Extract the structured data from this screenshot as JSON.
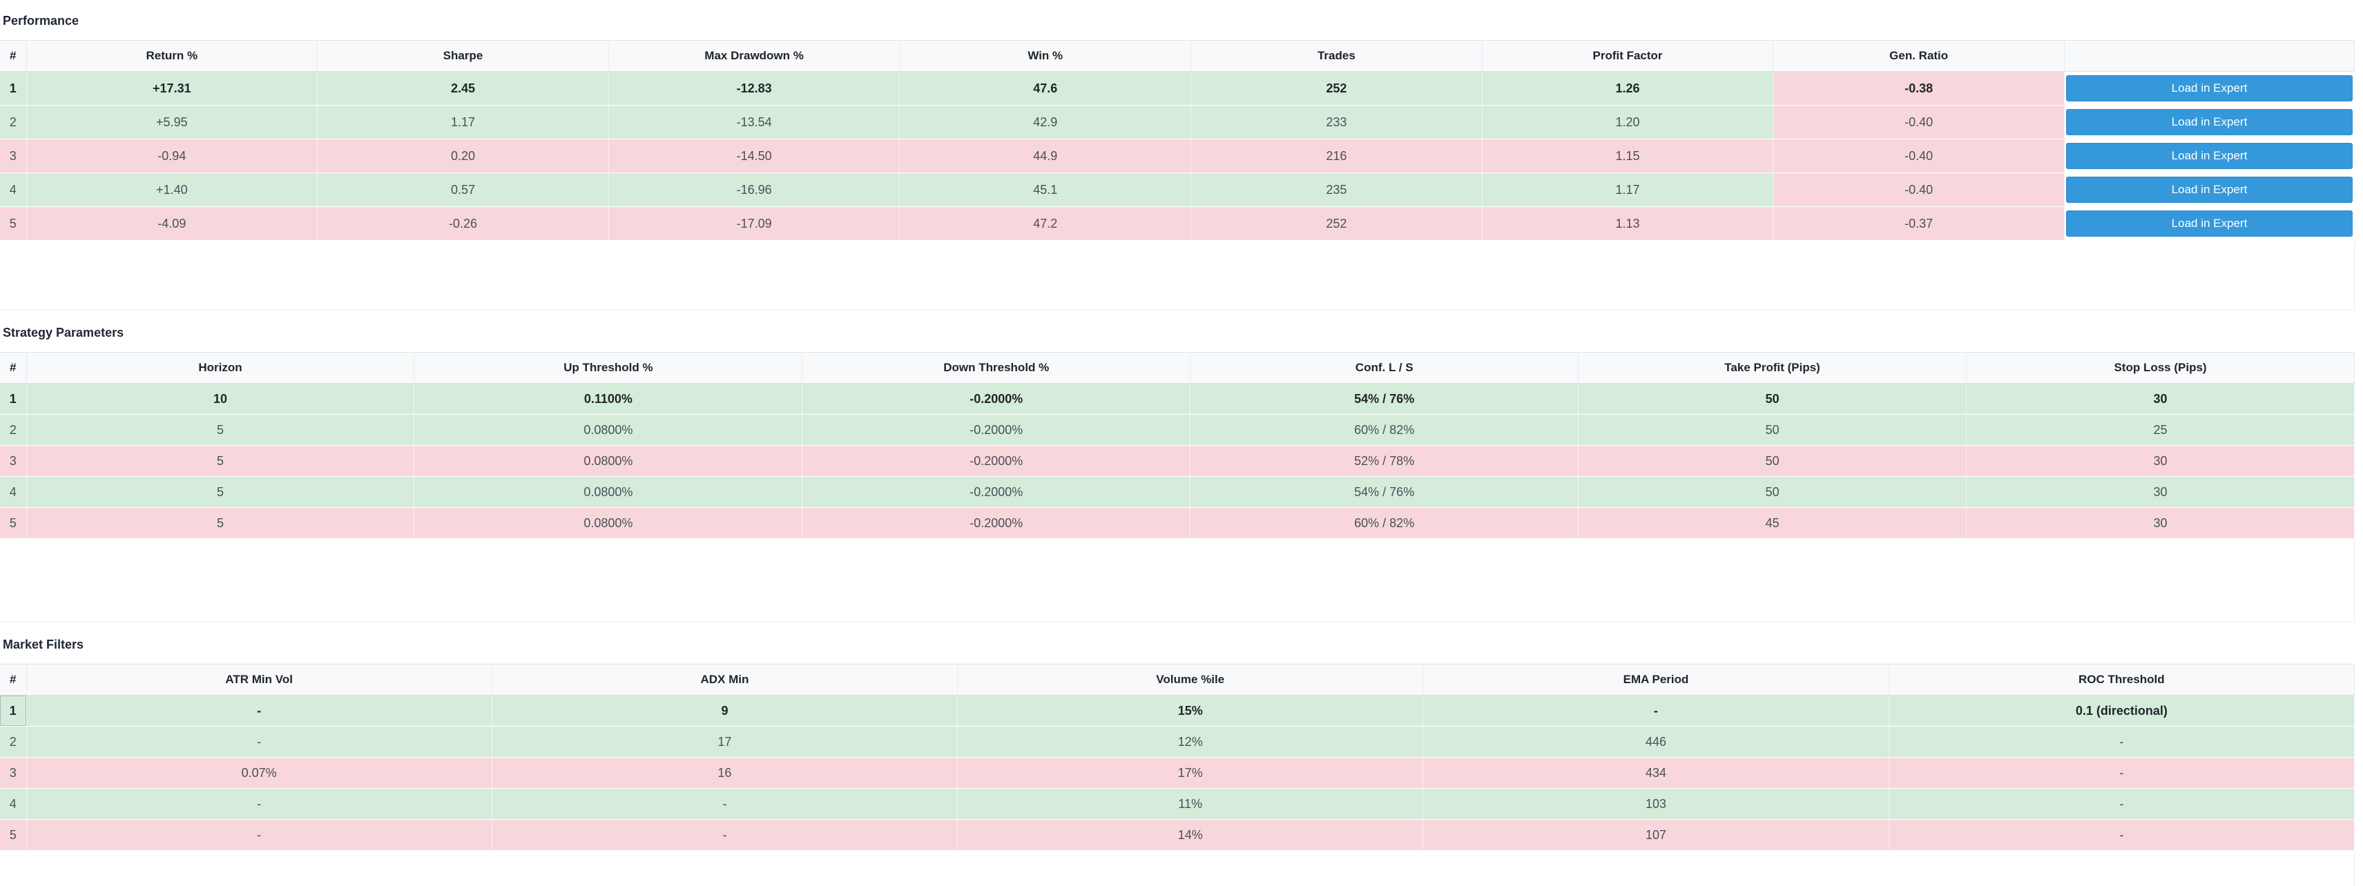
{
  "performance": {
    "title": "Performance",
    "columns": [
      "#",
      "Return %",
      "Sharpe",
      "Max Drawdown %",
      "Win %",
      "Trades",
      "Profit Factor",
      "Gen. Ratio",
      ""
    ],
    "action_label": "Load in Expert",
    "rows": [
      {
        "n": "1",
        "status": "good",
        "best": true,
        "cells": [
          "+17.31",
          "2.45",
          "-12.83",
          "47.6",
          "252",
          "1.26",
          "-0.38"
        ],
        "gen_status": "bad"
      },
      {
        "n": "2",
        "status": "good",
        "best": false,
        "cells": [
          "+5.95",
          "1.17",
          "-13.54",
          "42.9",
          "233",
          "1.20",
          "-0.40"
        ],
        "gen_status": "bad"
      },
      {
        "n": "3",
        "status": "bad",
        "best": false,
        "cells": [
          "-0.94",
          "0.20",
          "-14.50",
          "44.9",
          "216",
          "1.15",
          "-0.40"
        ],
        "gen_status": "bad"
      },
      {
        "n": "4",
        "status": "good",
        "best": false,
        "cells": [
          "+1.40",
          "0.57",
          "-16.96",
          "45.1",
          "235",
          "1.17",
          "-0.40"
        ],
        "gen_status": "bad"
      },
      {
        "n": "5",
        "status": "bad",
        "best": false,
        "cells": [
          "-4.09",
          "-0.26",
          "-17.09",
          "47.2",
          "252",
          "1.13",
          "-0.37"
        ],
        "gen_status": "bad"
      }
    ]
  },
  "strategy": {
    "title": "Strategy Parameters",
    "columns": [
      "#",
      "Horizon",
      "Up Threshold %",
      "Down Threshold %",
      "Conf. L / S",
      "Take Profit (Pips)",
      "Stop Loss (Pips)"
    ],
    "rows": [
      {
        "n": "1",
        "status": "good",
        "best": true,
        "cells": [
          "10",
          "0.1100%",
          "-0.2000%",
          "54% / 76%",
          "50",
          "30"
        ]
      },
      {
        "n": "2",
        "status": "good",
        "best": false,
        "cells": [
          "5",
          "0.0800%",
          "-0.2000%",
          "60% / 82%",
          "50",
          "25"
        ]
      },
      {
        "n": "3",
        "status": "bad",
        "best": false,
        "cells": [
          "5",
          "0.0800%",
          "-0.2000%",
          "52% / 78%",
          "50",
          "30"
        ]
      },
      {
        "n": "4",
        "status": "good",
        "best": false,
        "cells": [
          "5",
          "0.0800%",
          "-0.2000%",
          "54% / 76%",
          "50",
          "30"
        ]
      },
      {
        "n": "5",
        "status": "bad",
        "best": false,
        "cells": [
          "5",
          "0.0800%",
          "-0.2000%",
          "60% / 82%",
          "45",
          "30"
        ]
      }
    ]
  },
  "filters": {
    "title": "Market Filters",
    "columns": [
      "#",
      "ATR Min Vol",
      "ADX Min",
      "Volume %ile",
      "EMA Period",
      "ROC Threshold"
    ],
    "rows": [
      {
        "n": "1",
        "status": "good",
        "best": true,
        "cells": [
          "-",
          "9",
          "15%",
          "-",
          "0.1 (directional)"
        ]
      },
      {
        "n": "2",
        "status": "good",
        "best": false,
        "cells": [
          "-",
          "17",
          "12%",
          "446",
          "-"
        ]
      },
      {
        "n": "3",
        "status": "bad",
        "best": false,
        "cells": [
          "0.07%",
          "16",
          "17%",
          "434",
          "-"
        ]
      },
      {
        "n": "4",
        "status": "good",
        "best": false,
        "cells": [
          "-",
          "-",
          "11%",
          "103",
          "-"
        ]
      },
      {
        "n": "5",
        "status": "bad",
        "best": false,
        "cells": [
          "-",
          "-",
          "14%",
          "107",
          "-"
        ]
      }
    ]
  }
}
